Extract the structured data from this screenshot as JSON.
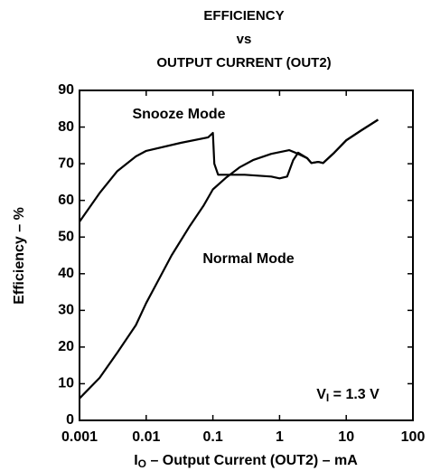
{
  "chart_data": {
    "type": "line",
    "title": [
      "EFFICIENCY",
      "vs",
      "OUTPUT CURRENT (OUT2)"
    ],
    "ylabel": "Efficiency – %",
    "xlabel": [
      "I",
      "O",
      " – Output Current (OUT2) – mA"
    ],
    "annotation": [
      "V",
      "I",
      " = 1.3 V"
    ],
    "xscale": "log",
    "xlim": [
      0.001,
      100
    ],
    "xticks": [
      0.001,
      0.01,
      0.1,
      1,
      10,
      100
    ],
    "ylim": [
      0,
      90
    ],
    "yticks": [
      0,
      10,
      20,
      30,
      40,
      50,
      60,
      70,
      80,
      90
    ],
    "grid": false,
    "series": [
      {
        "name": "Snooze Mode",
        "color": "#000000",
        "x": [
          0.001,
          0.002,
          0.0037,
          0.007,
          0.01,
          0.033,
          0.085,
          0.1,
          0.105,
          0.12,
          0.3,
          0.75,
          1,
          1.3,
          1.6,
          1.9,
          2.6,
          3,
          3.8,
          4.5,
          6.6,
          10,
          16.5,
          30
        ],
        "values": [
          54.2,
          62,
          68,
          72,
          73.5,
          75.7,
          77.2,
          78.4,
          70,
          67,
          67,
          66.5,
          66,
          66.5,
          71,
          73,
          71.5,
          70.2,
          70.5,
          70.2,
          73,
          76.4,
          79,
          82
        ]
      },
      {
        "name": "Normal Mode",
        "color": "#000000",
        "x": [
          0.001,
          0.002,
          0.0037,
          0.007,
          0.01,
          0.015,
          0.024,
          0.045,
          0.072,
          0.1,
          0.16,
          0.25,
          0.4,
          0.75,
          1.4,
          1.9,
          2.6,
          3,
          3.8,
          4.5,
          6.6,
          10,
          16.5,
          30
        ],
        "values": [
          6,
          11.6,
          18.5,
          26,
          32,
          38,
          45,
          53,
          58.5,
          63,
          66.3,
          69,
          71,
          72.7,
          73.7,
          72.7,
          71.5,
          70.2,
          70.5,
          70.2,
          73,
          76.4,
          79,
          82
        ]
      }
    ]
  }
}
